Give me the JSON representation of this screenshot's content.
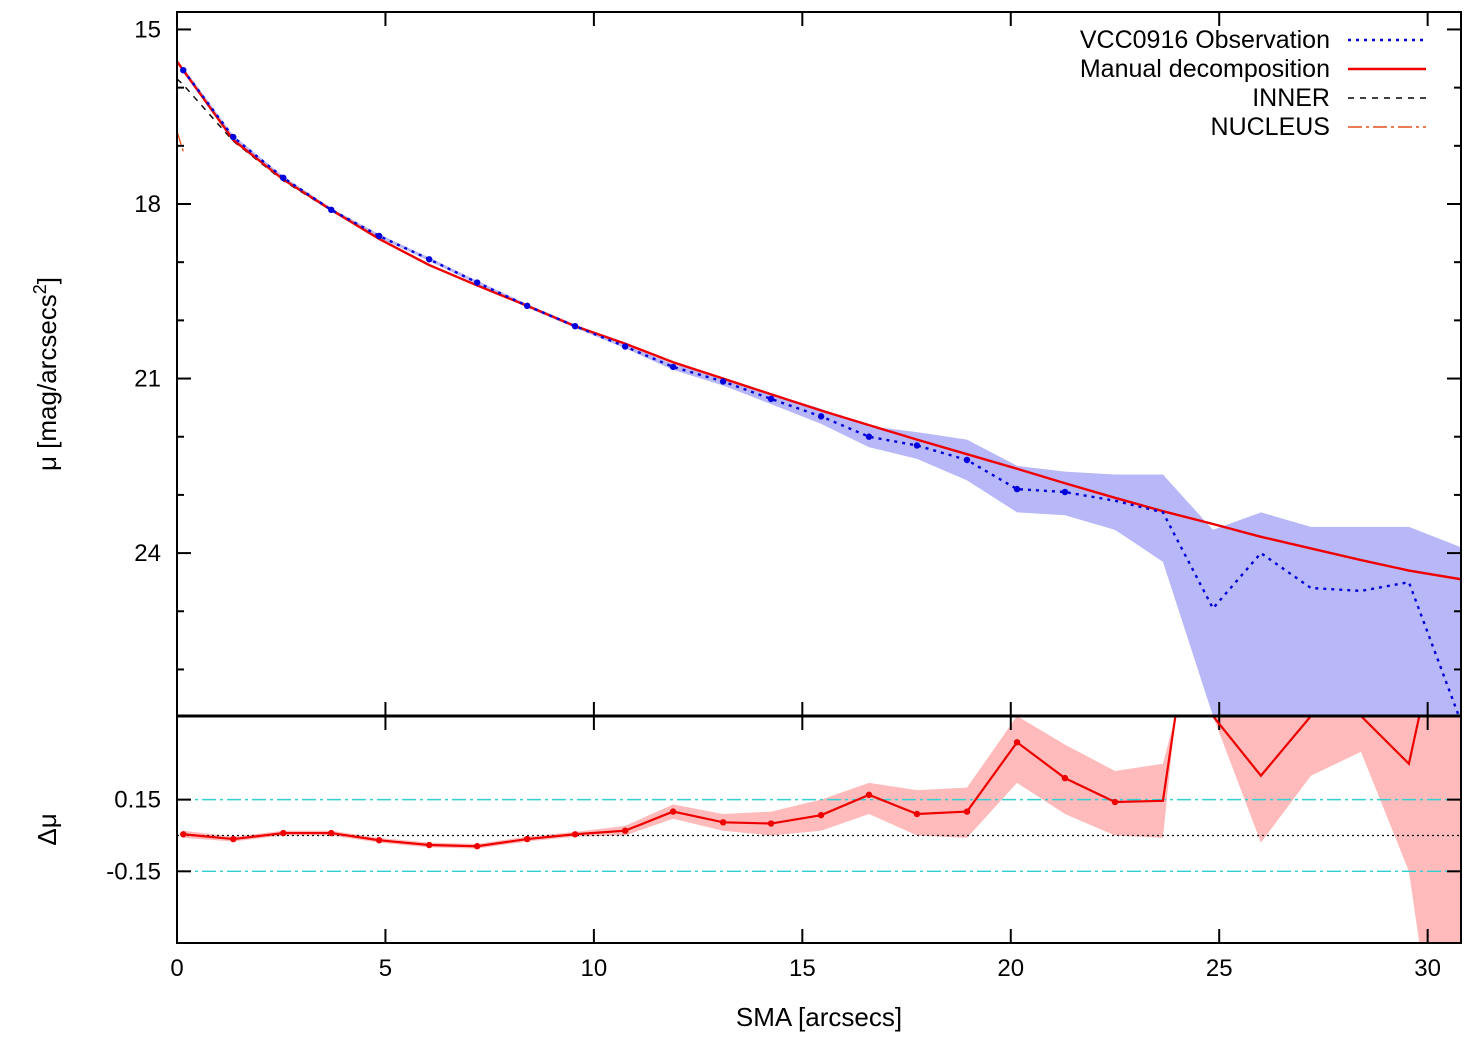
{
  "chart_data": [
    {
      "type": "line",
      "panel": "profile",
      "ylabel": "μ [mag/arcsecs",
      "ylabel_sup": "2",
      "ylabel_close": "]",
      "xlim": [
        0,
        30.8
      ],
      "ylim": [
        26.8,
        14.7
      ],
      "y_inverted": true,
      "yticks": [
        15,
        18,
        21,
        24
      ],
      "ytick_labels": [
        "15",
        "18",
        "21",
        "24"
      ],
      "legend_position": "top-right",
      "series": [
        {
          "name": "VCC0916 Observation",
          "style": "dotted",
          "color": "#0000dd",
          "markers": true,
          "x": [
            0.15,
            1.35,
            2.55,
            3.7,
            4.85,
            6.05,
            7.2,
            8.4,
            9.55,
            10.75,
            11.9,
            13.1,
            14.25,
            15.45,
            16.6,
            17.75,
            18.95,
            20.15,
            21.3,
            22.5,
            23.65,
            24.85,
            26.0,
            27.2,
            28.4,
            29.55,
            30.8
          ],
          "values": [
            15.7,
            16.85,
            17.55,
            18.1,
            18.55,
            18.95,
            19.35,
            19.75,
            20.1,
            20.45,
            20.8,
            21.05,
            21.35,
            21.65,
            22.0,
            22.15,
            22.4,
            22.9,
            22.95,
            23.1,
            23.3,
            24.95,
            24.0,
            24.6,
            24.65,
            24.5,
            26.9
          ],
          "lower": [
            15.65,
            16.82,
            17.52,
            18.07,
            18.52,
            18.92,
            19.32,
            19.72,
            20.07,
            20.42,
            20.75,
            20.98,
            21.26,
            21.52,
            21.82,
            21.92,
            22.05,
            22.5,
            22.6,
            22.65,
            22.65,
            23.6,
            23.3,
            23.55,
            23.55,
            23.55,
            23.9
          ],
          "upper": [
            15.75,
            16.88,
            17.58,
            18.13,
            18.58,
            18.98,
            19.38,
            19.78,
            20.13,
            20.48,
            20.85,
            21.12,
            21.44,
            21.78,
            22.18,
            22.38,
            22.75,
            23.3,
            23.35,
            23.6,
            24.15,
            26.9,
            26.9,
            26.9,
            26.9,
            26.9,
            26.9
          ],
          "lower_end": 24.05
        },
        {
          "name": "Manual decomposition",
          "style": "solid",
          "color": "#ee0000",
          "x": [
            0.0,
            0.15,
            1.35,
            2.55,
            3.7,
            4.85,
            6.05,
            7.2,
            8.4,
            9.55,
            10.75,
            11.9,
            13.1,
            14.25,
            15.45,
            16.6,
            17.75,
            18.95,
            20.15,
            21.3,
            22.5,
            23.65,
            24.85,
            26.0,
            27.2,
            28.4,
            29.55,
            30.8
          ],
          "values": [
            15.55,
            15.7,
            16.9,
            17.58,
            18.1,
            18.6,
            19.05,
            19.4,
            19.75,
            20.1,
            20.4,
            20.72,
            21.0,
            21.27,
            21.55,
            21.8,
            22.05,
            22.3,
            22.55,
            22.8,
            23.05,
            23.28,
            23.5,
            23.72,
            23.92,
            24.12,
            24.3,
            24.45
          ]
        },
        {
          "name": "INNER",
          "style": "dashed",
          "color": "#000000",
          "x": [
            0.0,
            0.15,
            1.35,
            2.55,
            3.7,
            4.85,
            6.05,
            7.2,
            8.4,
            9.55,
            10.75,
            11.9,
            13.1,
            14.25,
            15.45,
            16.6,
            17.75,
            18.95,
            20.15,
            21.3,
            22.5,
            23.65,
            24.85,
            26.0,
            27.2,
            28.4,
            29.55,
            30.8
          ],
          "values": [
            15.85,
            15.95,
            16.92,
            17.6,
            18.11,
            18.6,
            19.05,
            19.4,
            19.75,
            20.1,
            20.4,
            20.72,
            21.0,
            21.27,
            21.55,
            21.8,
            22.05,
            22.3,
            22.55,
            22.8,
            23.05,
            23.28,
            23.5,
            23.72,
            23.92,
            24.12,
            24.3,
            24.45
          ]
        },
        {
          "name": "NUCLEUS",
          "style": "dash-dot",
          "color": "#e8501a",
          "x": [
            0.0,
            0.15
          ],
          "values": [
            16.75,
            17.1
          ]
        }
      ]
    },
    {
      "type": "line",
      "panel": "residual",
      "xlabel": "SMA [arcsecs]",
      "ylabel": "Δμ",
      "xlim": [
        0,
        30.8
      ],
      "ylim": [
        -0.45,
        0.5
      ],
      "xticks": [
        0,
        5,
        10,
        15,
        20,
        25,
        30
      ],
      "xtick_labels": [
        "0",
        "5",
        "10",
        "15",
        "20",
        "25",
        "30"
      ],
      "yticks": [
        0.15,
        -0.15
      ],
      "ytick_labels": [
        "0.15",
        "-0.15"
      ],
      "reference_lines": [
        {
          "y": 0.15,
          "style": "dash-dot",
          "color": "#30d0d0"
        },
        {
          "y": -0.15,
          "style": "dash-dot",
          "color": "#30d0d0"
        },
        {
          "y": 0.0,
          "style": "dotted",
          "color": "#000000"
        }
      ],
      "series": [
        {
          "style": "solid",
          "color": "#ee0000",
          "markers": true,
          "band_color": "#ffbbbb",
          "x": [
            0.15,
            1.35,
            2.55,
            3.7,
            4.85,
            6.05,
            7.2,
            8.4,
            9.55,
            10.75,
            11.9,
            13.1,
            14.25,
            15.45,
            16.6,
            17.75,
            18.95,
            20.15,
            21.3,
            22.5,
            23.65,
            23.95,
            24.85,
            26.0,
            27.2,
            28.4,
            29.55,
            29.8
          ],
          "values": [
            0.005,
            -0.015,
            0.01,
            0.01,
            -0.02,
            -0.04,
            -0.045,
            -0.015,
            0.005,
            0.02,
            0.1,
            0.055,
            0.05,
            0.085,
            0.17,
            0.09,
            0.1,
            0.39,
            0.24,
            0.14,
            0.145,
            0.5,
            0.5,
            0.25,
            0.5,
            0.5,
            0.3,
            0.5
          ],
          "lower": [
            -0.01,
            -0.025,
            0.0,
            0.0,
            -0.03,
            -0.05,
            -0.055,
            -0.025,
            -0.005,
            0.0,
            0.07,
            0.02,
            0.0,
            0.02,
            0.09,
            0.0,
            -0.01,
            0.22,
            0.09,
            0.0,
            -0.01,
            0.5,
            0.5,
            -0.03,
            0.25,
            0.35,
            -0.15,
            -0.45
          ],
          "upper": [
            0.02,
            -0.005,
            0.02,
            0.02,
            -0.01,
            -0.03,
            -0.035,
            -0.005,
            0.015,
            0.04,
            0.13,
            0.09,
            0.1,
            0.15,
            0.22,
            0.19,
            0.2,
            0.5,
            0.38,
            0.27,
            0.3,
            0.5,
            0.5,
            0.5,
            0.5,
            0.5,
            0.5,
            0.5
          ]
        }
      ]
    }
  ]
}
